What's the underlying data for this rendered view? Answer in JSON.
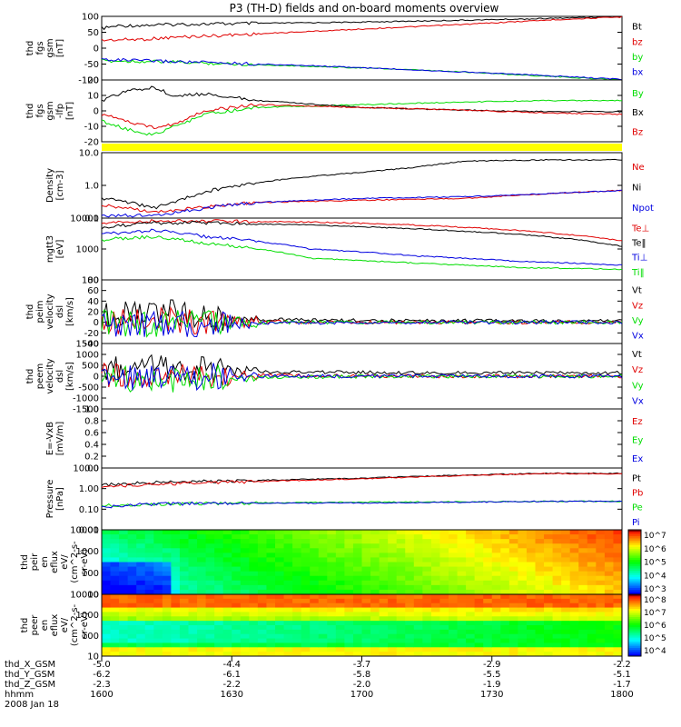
{
  "title": "P3 (TH-D) fields and on-board moments overview",
  "colors": {
    "black": "#000000",
    "red": "#e00000",
    "green": "#00dd00",
    "blue": "#0000e0",
    "yellow": "#ffff00"
  },
  "chart_data": {
    "type": "line",
    "x_time_ticks": [
      "1600",
      "1630",
      "1700",
      "1730",
      "1800"
    ],
    "x_range": [
      "16:00",
      "18:00"
    ],
    "date": "2008 Jan 18",
    "ephemeris": [
      {
        "name": "thd_X_GSM",
        "values": [
          "-5.0",
          "-4.4",
          "-3.7",
          "-2.9",
          "-2.2"
        ]
      },
      {
        "name": "thd_Y_GSM",
        "values": [
          "-6.2",
          "-6.1",
          "-5.8",
          "-5.5",
          "-5.1"
        ]
      },
      {
        "name": "thd_Z_GSM",
        "values": [
          "-2.3",
          "-2.2",
          "-2.0",
          "-1.9",
          "-1.7"
        ]
      },
      {
        "name": "hhmm",
        "values": [
          "1600",
          "1630",
          "1700",
          "1730",
          "1800"
        ]
      }
    ],
    "panels": [
      {
        "ylabel": [
          "thd",
          "fgs",
          "gsm",
          "[nT]"
        ],
        "ylim": [
          -100,
          100
        ],
        "scale": "linear",
        "yticks": [
          "100",
          "50",
          "0",
          "-50",
          "-100"
        ],
        "legend": [
          "Bt",
          "bz",
          "by",
          "bx"
        ],
        "series": [
          {
            "name": "Bt",
            "color": "black",
            "x": [
              0,
              0.03,
              0.08,
              0.15,
              0.3,
              0.5,
              0.7,
              0.85,
              1.0
            ],
            "y": [
              62,
              70,
              72,
              75,
              78,
              82,
              88,
              93,
              100
            ]
          },
          {
            "name": "bz",
            "color": "red",
            "x": [
              0,
              0.08,
              0.15,
              0.3,
              0.5,
              0.7,
              0.85,
              1.0
            ],
            "y": [
              25,
              28,
              35,
              45,
              60,
              75,
              88,
              98
            ]
          },
          {
            "name": "by",
            "color": "green",
            "x": [
              0,
              0.1,
              0.3,
              0.5,
              0.7,
              0.85,
              1.0
            ],
            "y": [
              -40,
              -42,
              -52,
              -62,
              -75,
              -88,
              -100
            ]
          },
          {
            "name": "bx",
            "color": "blue",
            "x": [
              0,
              0.05,
              0.2,
              0.4,
              0.6,
              0.8,
              1.0
            ],
            "y": [
              -35,
              -38,
              -45,
              -55,
              -68,
              -82,
              -98
            ]
          }
        ]
      },
      {
        "ylabel": [
          "thd",
          "fgs",
          "gsm",
          "-lfp",
          "[nT]"
        ],
        "ylim": [
          -25,
          20
        ],
        "scale": "linear",
        "yticks": [
          "20",
          "10",
          "0",
          "-10",
          "-20"
        ],
        "legend": [
          "By",
          "Bx",
          "Bz"
        ],
        "series": [
          {
            "name": "By",
            "color": "green",
            "x": [
              0,
              0.05,
              0.1,
              0.14,
              0.2,
              0.3,
              0.5,
              0.7,
              0.85,
              1.0
            ],
            "y": [
              -10,
              -16,
              -20,
              -14,
              -5,
              0,
              2,
              4,
              5,
              5
            ]
          },
          {
            "name": "Bx",
            "color": "black",
            "x": [
              0,
              0.05,
              0.1,
              0.14,
              0.2,
              0.3,
              0.5,
              0.7,
              0.85,
              1.0
            ],
            "y": [
              5,
              12,
              15,
              8,
              10,
              5,
              0,
              -2,
              -3,
              -3
            ]
          },
          {
            "name": "Bz",
            "color": "red",
            "x": [
              0,
              0.05,
              0.1,
              0.14,
              0.2,
              0.3,
              0.5,
              0.7,
              0.85,
              1.0
            ],
            "y": [
              -5,
              -10,
              -15,
              -12,
              -2,
              2,
              0,
              -2,
              -4,
              -5
            ]
          }
        ]
      },
      {
        "kind": "bar",
        "ylabel": [],
        "legend": []
      },
      {
        "ylabel": [
          "Density",
          "[cm-3]"
        ],
        "ylim": [
          0.1,
          10
        ],
        "scale": "log",
        "yticks": [
          "10.0",
          "1.0",
          "0.1"
        ],
        "legend": [
          "Ne",
          "Ni",
          "Npot"
        ],
        "series": [
          {
            "name": "Ne",
            "color": "red",
            "x": [
              0,
              0.05,
              0.1,
              0.15,
              0.3,
              0.5,
              0.7,
              0.85,
              1.0
            ],
            "y": [
              0.25,
              0.2,
              0.15,
              0.18,
              0.3,
              0.35,
              0.4,
              0.55,
              0.7
            ]
          },
          {
            "name": "Ni",
            "color": "black",
            "x": [
              0,
              0.05,
              0.1,
              0.15,
              0.3,
              0.5,
              0.6,
              0.7,
              0.85,
              1.0
            ],
            "y": [
              0.4,
              0.3,
              0.2,
              0.35,
              1.2,
              2.5,
              3.5,
              5.5,
              6,
              6
            ]
          },
          {
            "name": "Npot",
            "color": "blue",
            "x": [
              0,
              0.1,
              0.15,
              0.3,
              0.5,
              0.7,
              0.85,
              1.0
            ],
            "y": [
              0.12,
              0.12,
              0.15,
              0.3,
              0.4,
              0.45,
              0.55,
              0.7
            ]
          }
        ]
      },
      {
        "ylabel": [
          "mgtt3",
          "[eV]"
        ],
        "ylim": [
          100,
          10000
        ],
        "scale": "log",
        "yticks": [
          "10000",
          "1000",
          "100"
        ],
        "legend": [
          "Te⊥",
          "Te‖",
          "Ti⊥",
          "Ti‖"
        ],
        "series": [
          {
            "name": "Te⊥",
            "color": "red",
            "x": [
              0,
              0.1,
              0.2,
              0.4,
              0.6,
              0.8,
              1.0
            ],
            "y": [
              7000,
              8000,
              8000,
              7500,
              6000,
              4000,
              1800
            ]
          },
          {
            "name": "Te‖",
            "color": "black",
            "x": [
              0,
              0.1,
              0.2,
              0.4,
              0.6,
              0.8,
              1.0
            ],
            "y": [
              5000,
              7000,
              7000,
              6000,
              4500,
              3000,
              1200
            ]
          },
          {
            "name": "Ti⊥",
            "color": "blue",
            "x": [
              0,
              0.1,
              0.2,
              0.4,
              0.6,
              0.8,
              1.0
            ],
            "y": [
              3000,
              4000,
              2500,
              1000,
              600,
              400,
              300
            ]
          },
          {
            "name": "Ti‖",
            "color": "green",
            "x": [
              0,
              0.1,
              0.2,
              0.4,
              0.6,
              0.8,
              1.0
            ],
            "y": [
              2000,
              2500,
              1500,
              500,
              350,
              250,
              220
            ]
          }
        ]
      },
      {
        "ylabel": [
          "thd",
          "peim",
          "velocity",
          "dsl",
          "[km/s]"
        ],
        "ylim": [
          -40,
          80
        ],
        "scale": "linear",
        "yticks": [
          "80",
          "60",
          "40",
          "20",
          "0",
          "-20",
          "-40"
        ],
        "legend": [
          "Vt",
          "Vz",
          "Vy",
          "Vx"
        ],
        "series": [
          {
            "name": "Vt",
            "color": "black",
            "x": [
              0,
              0.1,
              0.15,
              0.3,
              0.65,
              1.0
            ],
            "y": [
              10,
              25,
              15,
              5,
              3,
              2
            ]
          },
          {
            "name": "Vz",
            "color": "red",
            "x": [
              0,
              0.1,
              0.2,
              0.65,
              1.0
            ],
            "y": [
              2,
              5,
              1,
              0,
              0
            ]
          },
          {
            "name": "Vy",
            "color": "green",
            "x": [
              0,
              0.1,
              0.2,
              0.65,
              1.0
            ],
            "y": [
              0,
              -3,
              0,
              0,
              0
            ]
          },
          {
            "name": "Vx",
            "color": "blue",
            "x": [
              0,
              0.1,
              0.2,
              0.65,
              1.0
            ],
            "y": [
              -2,
              -5,
              -2,
              0,
              0
            ]
          }
        ]
      },
      {
        "ylabel": [
          "thd",
          "peem",
          "velocity",
          "dsl",
          "[km/s]"
        ],
        "ylim": [
          -1500,
          1500
        ],
        "scale": "linear",
        "yticks": [
          "1500",
          "1000",
          "500",
          "0",
          "-500",
          "-1000",
          "-1500"
        ],
        "legend": [
          "Vt",
          "Vz",
          "Vy",
          "Vx"
        ],
        "series": [
          {
            "name": "Vt",
            "color": "black",
            "x": [
              0,
              0.1,
              0.15,
              0.3,
              0.65,
              1.0
            ],
            "y": [
              300,
              500,
              350,
              200,
              150,
              150
            ]
          },
          {
            "name": "Vz",
            "color": "red",
            "x": [
              0,
              0.1,
              0.2,
              0.65,
              1.0
            ],
            "y": [
              50,
              100,
              50,
              0,
              0
            ]
          },
          {
            "name": "Vy",
            "color": "green",
            "x": [
              0,
              0.1,
              0.2,
              0.65,
              1.0
            ],
            "y": [
              -50,
              -150,
              -50,
              0,
              0
            ]
          },
          {
            "name": "Vx",
            "color": "blue",
            "x": [
              0,
              0.1,
              0.2,
              0.65,
              1.0
            ],
            "y": [
              0,
              -50,
              0,
              0,
              0
            ]
          }
        ]
      },
      {
        "ylabel": [
          "E=-VxB",
          "[mV/m]"
        ],
        "ylim": [
          0,
          1
        ],
        "scale": "linear",
        "yticks": [
          "1.0",
          "0.8",
          "0.6",
          "0.4",
          "0.2",
          "0.0"
        ],
        "legend": [
          "Ez",
          "Ey",
          "Ex"
        ],
        "series": []
      },
      {
        "ylabel": [
          "Pressure",
          "[nPa]"
        ],
        "ylim": [
          0.01,
          10
        ],
        "scale": "log",
        "yticks": [
          "10.00",
          "1.00",
          "0.10",
          "0.01"
        ],
        "legend": [
          "Pt",
          "Pb",
          "Pe",
          "Pi"
        ],
        "series": [
          {
            "name": "Pt",
            "color": "black",
            "x": [
              0,
              0.1,
              0.3,
              0.5,
              0.7,
              0.85,
              1.0
            ],
            "y": [
              1.5,
              2,
              2.5,
              3.2,
              4.5,
              5.5,
              5.5
            ]
          },
          {
            "name": "Pb",
            "color": "red",
            "x": [
              0,
              0.1,
              0.3,
              0.5,
              0.7,
              0.85,
              1.0
            ],
            "y": [
              1.2,
              1.6,
              2.2,
              3,
              4.3,
              5.3,
              5.3
            ]
          },
          {
            "name": "Pe",
            "color": "green",
            "x": [
              0,
              0.1,
              0.3,
              0.5,
              0.7,
              0.85,
              1.0
            ],
            "y": [
              0.15,
              0.18,
              0.2,
              0.22,
              0.23,
              0.24,
              0.24
            ]
          },
          {
            "name": "Pi",
            "color": "blue",
            "x": [
              0,
              0.1,
              0.3,
              0.5,
              0.7,
              0.85,
              1.0
            ],
            "y": [
              0.12,
              0.18,
              0.2,
              0.2,
              0.22,
              0.24,
              0.24
            ]
          }
        ]
      },
      {
        "kind": "spectrogram",
        "ylabel": [
          "thd",
          "peir",
          "en",
          "eflux",
          "eV/",
          "(cm^2-s-",
          "sr-eV)"
        ],
        "ylim": [
          10,
          10000
        ],
        "scale": "log",
        "yticks": [
          "10000",
          "1000",
          "100",
          "10"
        ],
        "colorbar_labels": [
          "10^7",
          "10^6",
          "10^5",
          "10^4",
          "10^3"
        ]
      },
      {
        "kind": "spectrogram",
        "ylabel": [
          "thd",
          "peer",
          "en",
          "eflux",
          "eV/",
          "(cm^2-s-",
          "sr-eV)"
        ],
        "ylim": [
          10,
          10000
        ],
        "scale": "log",
        "yticks": [
          "10000",
          "1000",
          "100",
          "10"
        ],
        "colorbar_labels": [
          "10^8",
          "10^7",
          "10^6",
          "10^5",
          "10^4"
        ]
      }
    ]
  }
}
